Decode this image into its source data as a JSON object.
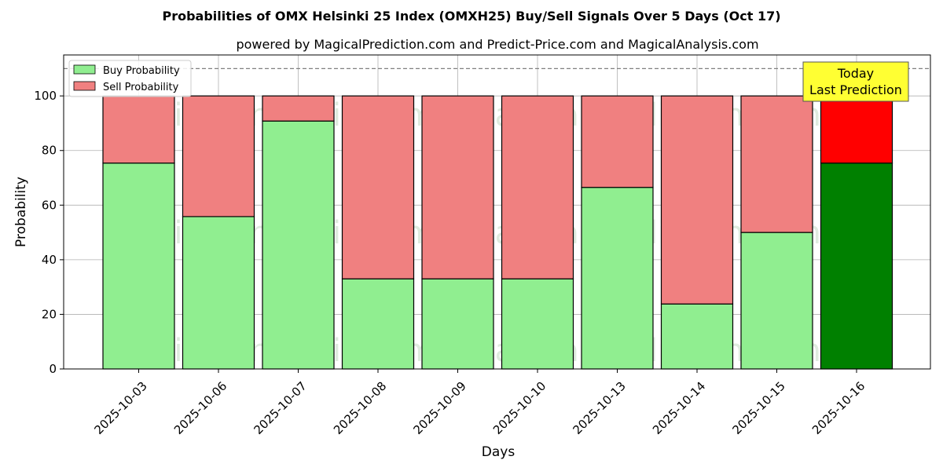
{
  "chart_data": {
    "type": "bar",
    "stacked": true,
    "title": "Probabilities of OMX Helsinki 25 Index (OMXH25) Buy/Sell Signals Over 5 Days (Oct 17)",
    "subtitle": "powered by MagicalPrediction.com and Predict-Price.com and MagicalAnalysis.com",
    "xlabel": "Days",
    "ylabel": "Probability",
    "ylim": [
      0,
      115
    ],
    "yticks": [
      0,
      20,
      40,
      60,
      80,
      100
    ],
    "grid": true,
    "legend_position": "top-left",
    "categories": [
      "2025-10-03",
      "2025-10-06",
      "2025-10-07",
      "2025-10-08",
      "2025-10-09",
      "2025-10-10",
      "2025-10-13",
      "2025-10-14",
      "2025-10-15",
      "2025-10-16"
    ],
    "series": [
      {
        "name": "Buy Probability",
        "values": [
          75.4,
          55.8,
          90.8,
          33.0,
          33.0,
          33.0,
          66.5,
          23.8,
          50.0,
          75.4
        ],
        "color": "#90ee90",
        "highlight_color": "#008000"
      },
      {
        "name": "Sell Probability",
        "values": [
          24.6,
          44.2,
          9.2,
          67.0,
          67.0,
          67.0,
          33.5,
          76.2,
          50.0,
          24.6
        ],
        "color": "#f08080",
        "highlight_color": "#ff0000"
      }
    ],
    "reference_line": {
      "y": 110,
      "style": "dashed",
      "color": "#808080"
    },
    "annotation": {
      "lines": [
        "Today",
        "Last Prediction"
      ],
      "category": "2025-10-16",
      "background": "#ffff33"
    },
    "watermarks": [
      "MagicalAnalysis.com",
      "MagicalPrediction.com",
      "MagicalAnalysis.com",
      "MagicalPrediction.com",
      "MagicalAnalysis.com",
      "MagicalPrediction.com"
    ]
  }
}
